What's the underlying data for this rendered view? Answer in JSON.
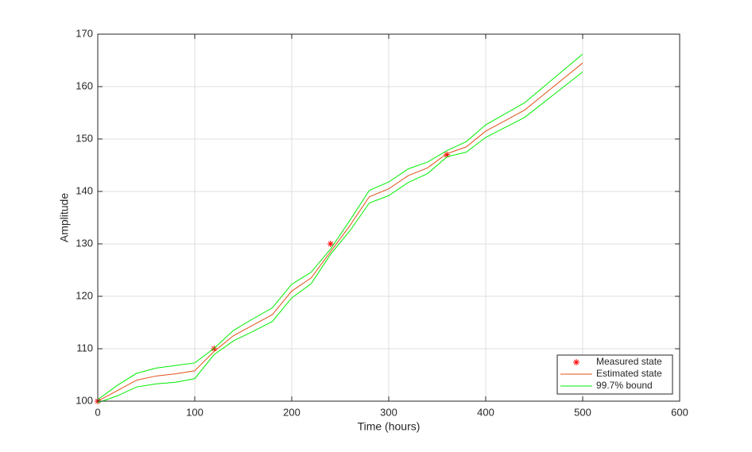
{
  "chart_data": {
    "type": "line",
    "xlabel": "Time (hours)",
    "ylabel": "Amplitude",
    "x": [
      0,
      20,
      40,
      60,
      80,
      100,
      120,
      140,
      160,
      180,
      200,
      220,
      240,
      260,
      280,
      300,
      320,
      340,
      360,
      380,
      400,
      420,
      440,
      460,
      480,
      500
    ],
    "series": [
      {
        "name": "Measured state",
        "color": "#ff0000",
        "marker": "*",
        "x": [
          0,
          120,
          240,
          360
        ],
        "values": [
          100,
          110,
          130,
          147
        ]
      },
      {
        "name": "Estimated state",
        "color": "#e0501a",
        "values": [
          100,
          102,
          104,
          104.8,
          105.2,
          105.8,
          109.5,
          112.5,
          114.5,
          116.5,
          121,
          123.5,
          128.5,
          133.5,
          139,
          140.5,
          143,
          144.5,
          147.2,
          148.5,
          151.5,
          153.5,
          155.5,
          158.5,
          161.5,
          164.5
        ]
      },
      {
        "name": "99.7% bound",
        "color": "#00ee00",
        "upper": [
          100.3,
          103,
          105.3,
          106.3,
          106.8,
          107.3,
          110.1,
          113.5,
          115.7,
          117.8,
          122.3,
          124.6,
          129,
          134.5,
          140.2,
          141.8,
          144.3,
          145.6,
          147.8,
          149.5,
          152.7,
          154.8,
          156.9,
          160,
          163.1,
          166.2
        ],
        "lower": [
          99.7,
          101,
          102.7,
          103.3,
          103.6,
          104.3,
          108.9,
          111.5,
          113.3,
          115.2,
          119.7,
          122.4,
          128,
          132.5,
          137.8,
          139.2,
          141.7,
          143.4,
          146.6,
          147.5,
          150.3,
          152.2,
          154.1,
          157,
          159.9,
          162.8
        ]
      }
    ],
    "xlim": [
      0,
      600
    ],
    "ylim": [
      100,
      170
    ],
    "xticks": [
      0,
      100,
      200,
      300,
      400,
      500,
      600
    ],
    "yticks": [
      100,
      110,
      120,
      130,
      140,
      150,
      160,
      170
    ],
    "grid": true,
    "legend": "southeast"
  }
}
